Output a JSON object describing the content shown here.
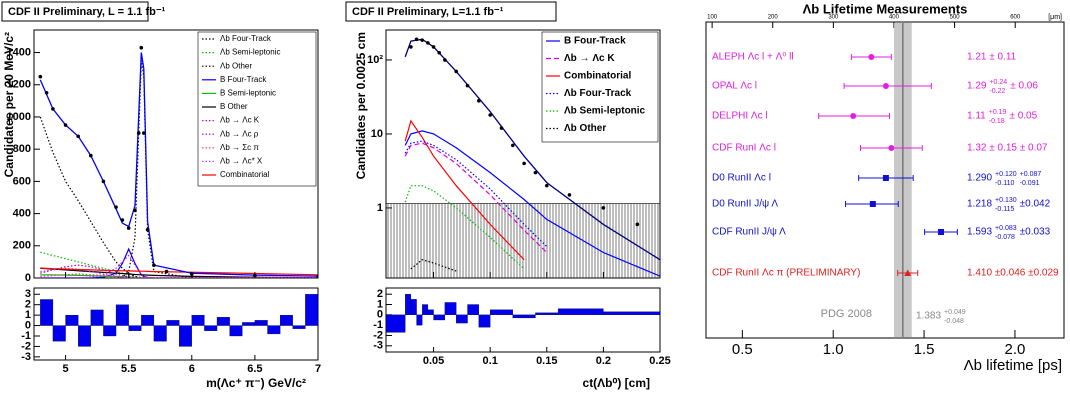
{
  "chart_data": [
    {
      "type": "line",
      "title": "CDF II Preliminary, L = 1.1 fb⁻¹",
      "ylabel": "Candidates per 20 MeV/c²",
      "xlim": [
        4.75,
        7.0
      ],
      "ylim": [
        0,
        1540
      ],
      "yticks": [
        0,
        200,
        400,
        600,
        800,
        1000,
        1200,
        1400
      ],
      "x": [
        4.8,
        4.9,
        5.0,
        5.1,
        5.2,
        5.3,
        5.4,
        5.45,
        5.5,
        5.55,
        5.6,
        5.62,
        5.65,
        5.7,
        6.0,
        6.5,
        7.0
      ],
      "fit": {
        "color": "#0000ff",
        "values": [
          1230,
          1050,
          950,
          880,
          760,
          600,
          430,
          340,
          320,
          450,
          1400,
          1300,
          350,
          80,
          30,
          18,
          12
        ]
      },
      "points": {
        "x": [
          4.8,
          4.85,
          4.9,
          5.0,
          5.1,
          5.2,
          5.3,
          5.4,
          5.45,
          5.5,
          5.55,
          5.58,
          5.6,
          5.62,
          5.65,
          5.7,
          5.8,
          6.0,
          6.5,
          7.0
        ],
        "values": [
          1250,
          1150,
          1050,
          950,
          880,
          760,
          600,
          440,
          360,
          310,
          420,
          900,
          1430,
          900,
          300,
          80,
          40,
          25,
          15,
          10
        ]
      },
      "series": [
        {
          "name": "Λb Four-Track",
          "color": "#000000",
          "style": "dotted",
          "values": [
            0,
            0,
            0,
            0,
            0,
            0,
            0,
            5,
            40,
            250,
            1350,
            1250,
            300,
            40,
            0,
            0,
            0
          ]
        },
        {
          "name": "Λb Semi-leptonic",
          "color": "#00c000",
          "style": "dotted",
          "values": [
            160,
            140,
            120,
            100,
            80,
            60,
            40,
            30,
            20,
            10,
            3,
            2,
            1,
            0,
            0,
            0,
            0
          ]
        },
        {
          "name": "Λb Other",
          "color": "#000000",
          "style": "dotted",
          "values": [
            1000,
            780,
            600,
            480,
            350,
            220,
            100,
            60,
            30,
            10,
            2,
            1,
            0,
            0,
            0,
            0,
            0
          ]
        },
        {
          "name": "B Four-Track",
          "color": "#0000ff",
          "style": "solid",
          "values": [
            0,
            0,
            0,
            0,
            0,
            5,
            30,
            90,
            180,
            90,
            20,
            10,
            3,
            0,
            0,
            0,
            0
          ]
        },
        {
          "name": "B Semi-leptonic",
          "color": "#00c000",
          "style": "solid",
          "values": [
            20,
            20,
            18,
            16,
            14,
            12,
            10,
            8,
            6,
            4,
            2,
            2,
            1,
            0,
            0,
            0,
            0
          ]
        },
        {
          "name": "B Other",
          "color": "#000000",
          "style": "solid",
          "values": [
            60,
            55,
            50,
            45,
            40,
            35,
            30,
            28,
            25,
            22,
            20,
            19,
            18,
            16,
            10,
            5,
            2
          ]
        },
        {
          "name": "Λb → Λc K",
          "color": "#e000e0",
          "style": "dotted",
          "values": [
            0,
            0,
            0,
            0,
            5,
            20,
            60,
            100,
            140,
            80,
            20,
            10,
            3,
            0,
            0,
            0,
            0
          ]
        },
        {
          "name": "Λb → Λc ρ",
          "color": "#a000c0",
          "style": "dotted",
          "values": [
            30,
            50,
            70,
            80,
            70,
            50,
            25,
            15,
            8,
            3,
            0,
            0,
            0,
            0,
            0,
            0,
            0
          ]
        },
        {
          "name": "Λb → Σc π",
          "color": "#ff3060",
          "style": "dotted",
          "values": [
            10,
            15,
            20,
            25,
            20,
            15,
            8,
            5,
            2,
            0,
            0,
            0,
            0,
            0,
            0,
            0,
            0
          ]
        },
        {
          "name": "Λb → Λc* X",
          "color": "#c040ff",
          "style": "dotted",
          "values": [
            40,
            50,
            60,
            55,
            40,
            25,
            12,
            6,
            3,
            0,
            0,
            0,
            0,
            0,
            0,
            0,
            0
          ]
        },
        {
          "name": "Combinatorial",
          "color": "#ff0000",
          "style": "solid",
          "values": [
            62,
            58,
            55,
            52,
            50,
            48,
            46,
            45,
            44,
            43,
            42,
            42,
            41,
            40,
            36,
            28,
            20
          ]
        }
      ]
    },
    {
      "type": "histogram",
      "xlabel": "m(Λc⁺ π⁻) GeV/c²",
      "color": "#0000ee",
      "xlim": [
        4.75,
        7.0
      ],
      "xticks": [
        5,
        5.5,
        6,
        6.5,
        7
      ],
      "ylim": [
        -3.3,
        3.6
      ],
      "yticks": [
        -3,
        -2,
        -1,
        0,
        1,
        2,
        3
      ],
      "bins": [
        4.8,
        4.9,
        5.0,
        5.1,
        5.2,
        5.3,
        5.4,
        5.5,
        5.6,
        5.7,
        5.8,
        5.9,
        6.0,
        6.1,
        6.2,
        6.3,
        6.4,
        6.5,
        6.6,
        6.7,
        6.8,
        6.9,
        7.0
      ],
      "values": [
        2.5,
        -1.5,
        1,
        -2,
        1.5,
        -1,
        2,
        -0.5,
        1,
        -1.5,
        0.5,
        -2,
        1,
        -0.5,
        0.8,
        -1,
        0.3,
        0.5,
        -0.8,
        1,
        -0.3,
        3
      ]
    },
    {
      "type": "line",
      "title": "CDF II Preliminary, L=1.1 fb⁻¹",
      "ylabel": "Candidates per 0.0025 cm",
      "ylog": true,
      "xlim": [
        0.008,
        0.25
      ],
      "ylim": [
        0.113,
        254
      ],
      "yticks": [
        1,
        10,
        {
          "value": 100,
          "label": "10²"
        }
      ],
      "background": 1.15,
      "x": [
        0.025,
        0.03,
        0.04,
        0.05,
        0.07,
        0.1,
        0.13,
        0.15,
        0.2,
        0.25
      ],
      "fit": {
        "color": "#000080",
        "values": [
          110,
          180,
          190,
          150,
          70,
          20,
          5,
          2.2,
          0.6,
          0.2
        ]
      },
      "points": {
        "x": [
          0.03,
          0.035,
          0.04,
          0.045,
          0.05,
          0.055,
          0.06,
          0.07,
          0.08,
          0.09,
          0.1,
          0.11,
          0.12,
          0.13,
          0.14,
          0.15,
          0.17,
          0.2,
          0.23
        ],
        "values": [
          150,
          190,
          185,
          170,
          150,
          125,
          100,
          70,
          45,
          28,
          18,
          12,
          7,
          4,
          3,
          2,
          1.5,
          1,
          0.6
        ]
      },
      "series": [
        {
          "name": "B Four-Track",
          "color": "#0000ff",
          "style": "solid",
          "values": [
            7,
            10,
            11,
            10,
            6.5,
            3,
            1.3,
            0.7,
            0.25,
            0.12
          ]
        },
        {
          "name": "Λb → Λc K",
          "color": "#e000e0",
          "style": "dashed",
          "values": [
            5,
            7,
            7.5,
            6.5,
            4,
            1.5,
            0.5,
            0.25,
            null,
            null
          ]
        },
        {
          "name": "Combinatorial",
          "color": "#ff0000",
          "style": "solid",
          "values": [
            8,
            15,
            9,
            5,
            2,
            0.6,
            0.2,
            null,
            null,
            null
          ]
        },
        {
          "name": "Λb Four-Track",
          "color": "#0000ff",
          "style": "dotted",
          "values": [
            5.5,
            7.5,
            8,
            7,
            4.5,
            1.8,
            0.6,
            0.3,
            null,
            null
          ]
        },
        {
          "name": "Λb Semi-leptonic",
          "color": "#00c000",
          "style": "dotted",
          "values": [
            1.2,
            2,
            2,
            1.7,
            1,
            0.4,
            0.15,
            null,
            null,
            null
          ]
        },
        {
          "name": "Λb Other",
          "color": "#000000",
          "style": "dotted",
          "values": [
            null,
            0.15,
            0.2,
            0.18,
            0.14,
            null,
            null,
            null,
            null,
            null
          ]
        }
      ]
    },
    {
      "type": "histogram",
      "xlabel": "ct(Λb⁰) [cm]",
      "color": "#0000ee",
      "xlim": [
        0.008,
        0.25
      ],
      "xticks": [
        0.05,
        0.1,
        0.15,
        0.2,
        0.25
      ],
      "ylim": [
        -3.6,
        2.6
      ],
      "yticks": [
        -3,
        -2,
        -1,
        0,
        1,
        2
      ],
      "bins": [
        0.008,
        0.025,
        0.03,
        0.035,
        0.04,
        0.045,
        0.05,
        0.06,
        0.07,
        0.08,
        0.09,
        0.1,
        0.12,
        0.14,
        0.16,
        0.2,
        0.25
      ],
      "values": [
        -1.7,
        2,
        1.5,
        -1,
        1,
        0.5,
        -0.5,
        1.2,
        -0.8,
        1,
        -1.2,
        0.5,
        -0.3,
        0.2,
        0.6,
        0.3
      ]
    },
    {
      "type": "forest",
      "title": "Λb Lifetime Measurements",
      "xlabel": "Λb lifetime [ps]",
      "xlim": [
        0.3,
        2.27
      ],
      "xticks": [
        {
          "value": 0.5,
          "label": "0.5"
        },
        {
          "value": 1,
          "label": "1.0"
        },
        {
          "value": 1.5,
          "label": "1.5"
        },
        {
          "value": 2,
          "label": "2.0"
        }
      ],
      "x2lim": [
        89.9,
        680.5
      ],
      "x2ticks": [
        100,
        200,
        300,
        400,
        500,
        600
      ],
      "x2label": "[μm]",
      "measurements": [
        {
          "label": "ALEPH Λc l + Λ⁰ ll",
          "color": "#e020e0",
          "marker": "circle",
          "value": 1.21,
          "err_low": 0.11,
          "err_high": 0.11,
          "result": [
            "1.21 ± 0.11"
          ]
        },
        {
          "label": "OPAL Λc l",
          "color": "#e020e0",
          "marker": "circle",
          "value": 1.29,
          "err_low": 0.23,
          "err_high": 0.25,
          "result": [
            "1.29",
            [
              "+0.24",
              "-0.22"
            ],
            "± 0.06"
          ]
        },
        {
          "label": "DELPHI Λc l",
          "color": "#e020e0",
          "marker": "circle",
          "value": 1.11,
          "err_low": 0.19,
          "err_high": 0.2,
          "result": [
            "1.11",
            [
              "+0.19",
              "-0.18"
            ],
            "± 0.05"
          ]
        },
        {
          "label": "CDF RunI Λc l",
          "color": "#e020e0",
          "marker": "circle",
          "value": 1.32,
          "err_low": 0.17,
          "err_high": 0.17,
          "result": [
            "1.32 ± 0.15 ± 0.07"
          ]
        },
        {
          "label": "D0 RunII Λc l",
          "color": "#1010d0",
          "marker": "square",
          "value": 1.29,
          "err_low": 0.15,
          "err_high": 0.15,
          "result": [
            "1.290",
            [
              "+0.120",
              "-0.110"
            ],
            [
              "+0.087",
              "-0.091"
            ]
          ]
        },
        {
          "label": "D0 RunII J/ψ Λ",
          "color": "#1010d0",
          "marker": "square",
          "value": 1.218,
          "err_low": 0.15,
          "err_high": 0.14,
          "result": [
            "1.218",
            [
              "+0.130",
              "-0.115"
            ],
            "±0.042"
          ]
        },
        {
          "label": "CDF RunII J/ψ Λ",
          "color": "#1010d0",
          "marker": "square",
          "value": 1.593,
          "err_low": 0.09,
          "err_high": 0.09,
          "result": [
            "1.593",
            [
              "+0.083",
              "-0.078"
            ],
            "±0.033"
          ]
        },
        {
          "label": "CDF RunII Λc π (PRELIMINARY)",
          "color": "#e02020",
          "marker": "triangle",
          "value": 1.41,
          "err_low": 0.055,
          "err_high": 0.055,
          "result": [
            "1.410 ±0.046 ±0.029"
          ]
        }
      ],
      "reference": {
        "label": "PDG 2008",
        "value": 1.383,
        "err_low": 0.048,
        "err_high": 0.049,
        "result": [
          "1.383",
          [
            "+0.049",
            "-0.048"
          ]
        ]
      }
    }
  ]
}
